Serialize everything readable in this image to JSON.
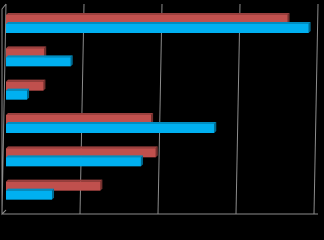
{
  "chart_data": {
    "type": "hbar",
    "categories": [
      null,
      null,
      null,
      null,
      null,
      null
    ],
    "series": [
      {
        "color": "#c0504d",
        "values": [
          3.61,
          0.49,
          0.48,
          1.86,
          1.92,
          1.21
        ]
      },
      {
        "color": "#00b0f0",
        "values": [
          3.88,
          0.83,
          0.27,
          2.67,
          1.73,
          0.59
        ]
      }
    ],
    "xlim": [
      0,
      4
    ],
    "xticks": [
      0,
      1,
      2,
      3,
      4
    ],
    "grid": true
  }
}
